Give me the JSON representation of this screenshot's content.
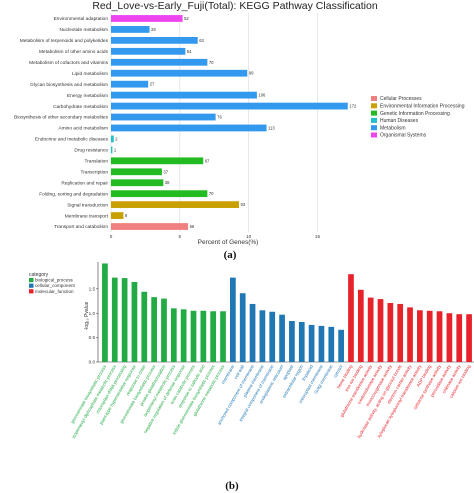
{
  "chart_data": [
    {
      "type": "bar",
      "orientation": "horizontal",
      "title": "Red_Love-vs-Early_Fuji(Total): KEGG Pathway Classification",
      "xlabel": "Percent of Genes(%)",
      "ylabel": "",
      "xlim": [
        0,
        17
      ],
      "xticks": [
        "0",
        "5",
        "10",
        "15"
      ],
      "grid": true,
      "legend_position": "right",
      "groups": [
        {
          "name": "Cellular Processes",
          "color": "#f08080"
        },
        {
          "name": "Environmental Information Processing",
          "color": "#c8a000"
        },
        {
          "name": "Genetic Information Processing",
          "color": "#22bb22"
        },
        {
          "name": "Human Diseases",
          "color": "#22c0c8"
        },
        {
          "name": "Metabolism",
          "color": "#3399ee"
        },
        {
          "name": "Organismal Systems",
          "color": "#ee44ee"
        }
      ],
      "bars": [
        {
          "category": "Environmental adaptation",
          "percent": 5.2,
          "count": "52",
          "group": "Organismal Systems"
        },
        {
          "category": "Nucleotide metabolism",
          "percent": 2.8,
          "count": "28",
          "group": "Metabolism"
        },
        {
          "category": "Metabolism of terpenoids and polyketides",
          "percent": 6.3,
          "count": "63",
          "group": "Metabolism"
        },
        {
          "category": "Metabolism of other amino acids",
          "percent": 5.4,
          "count": "54",
          "group": "Metabolism"
        },
        {
          "category": "Metabolism of cofactors and vitamins",
          "percent": 7.0,
          "count": "70",
          "group": "Metabolism"
        },
        {
          "category": "Lipid metabolism",
          "percent": 9.9,
          "count": "99",
          "group": "Metabolism"
        },
        {
          "category": "Glycan biosynthesis and metabolism",
          "percent": 2.7,
          "count": "27",
          "group": "Metabolism"
        },
        {
          "category": "Energy metabolism",
          "percent": 10.6,
          "count": "106",
          "group": "Metabolism"
        },
        {
          "category": "Carbohydrate metabolism",
          "percent": 17.2,
          "count": "172",
          "group": "Metabolism"
        },
        {
          "category": "Biosynthesis of other secondary metabolites",
          "percent": 7.6,
          "count": "76",
          "group": "Metabolism"
        },
        {
          "category": "Amino acid metabolism",
          "percent": 11.3,
          "count": "113",
          "group": "Metabolism"
        },
        {
          "category": "Endocrine and metabolic diseases",
          "percent": 0.2,
          "count": "2",
          "group": "Human Diseases"
        },
        {
          "category": "Drug resistance",
          "percent": 0.1,
          "count": "1",
          "group": "Human Diseases"
        },
        {
          "category": "Translation",
          "percent": 6.7,
          "count": "67",
          "group": "Genetic Information Processing"
        },
        {
          "category": "Transcription",
          "percent": 3.7,
          "count": "37",
          "group": "Genetic Information Processing"
        },
        {
          "category": "Replication and repair",
          "percent": 3.8,
          "count": "38",
          "group": "Genetic Information Processing"
        },
        {
          "category": "Folding, sorting and degradation",
          "percent": 7.0,
          "count": "70",
          "group": "Genetic Information Processing"
        },
        {
          "category": "Signal transduction",
          "percent": 9.3,
          "count": "93",
          "group": "Environmental Information Processing"
        },
        {
          "category": "Membrane transport",
          "percent": 0.9,
          "count": "9",
          "group": "Environmental Information Processing"
        },
        {
          "category": "Transport and catabolism",
          "percent": 5.6,
          "count": "56",
          "group": "Cellular Processes"
        }
      ],
      "caption": "(a)"
    },
    {
      "type": "bar",
      "orientation": "vertical",
      "title": "",
      "xlabel": "",
      "ylabel": "-log₁₀ Pvalue",
      "ylim": [
        0,
        2.05
      ],
      "yticks": [
        "0.0",
        "0.5",
        "1.0",
        "1.5"
      ],
      "grid": false,
      "legend_title": "category",
      "legend_position": "top-left",
      "series": [
        {
          "name": "biological_process",
          "color": "#22aa44"
        },
        {
          "name": "cellular_component",
          "color": "#1f77b4"
        },
        {
          "name": "molecular_function",
          "color": "#e8222a"
        }
      ],
      "bars": [
        {
          "term": "glucosinolate biosynthetic process",
          "value": 2.02,
          "category": "biological_process"
        },
        {
          "term": "isopentenyl diphosphate metabolic process",
          "value": 1.73,
          "category": "biological_process"
        },
        {
          "term": "chloroplast rRNA processing",
          "value": 1.72,
          "category": "biological_process"
        },
        {
          "term": "plant-type hypersensitive response",
          "value": 1.64,
          "category": "biological_process"
        },
        {
          "term": "response to chitin",
          "value": 1.44,
          "category": "biological_process"
        },
        {
          "term": "glucosinolate biosynthetic process",
          "value": 1.33,
          "category": "biological_process"
        },
        {
          "term": "protein glutathionylation",
          "value": 1.3,
          "category": "biological_process"
        },
        {
          "term": "isopentenyl metabolic process",
          "value": 1.1,
          "category": "biological_process"
        },
        {
          "term": "negative regulation of defense response",
          "value": 1.08,
          "category": "biological_process"
        },
        {
          "term": "toxin catabolic process",
          "value": 1.05,
          "category": "biological_process"
        },
        {
          "term": "response to salicylic acid",
          "value": 1.05,
          "category": "biological_process"
        },
        {
          "term": "indole glucosinolate biosynthetic process",
          "value": 1.04,
          "category": "biological_process"
        },
        {
          "term": "glutathione metabolic process",
          "value": 1.04,
          "category": "biological_process"
        },
        {
          "term": "membrane",
          "value": 1.73,
          "category": "cellular_component"
        },
        {
          "term": "cell wall",
          "value": 1.41,
          "category": "cellular_component"
        },
        {
          "term": "anchored component of membrane",
          "value": 1.19,
          "category": "cellular_component"
        },
        {
          "term": "plasma membrane",
          "value": 1.06,
          "category": "cellular_component"
        },
        {
          "term": "integral component of membrane",
          "value": 1.03,
          "category": "cellular_component"
        },
        {
          "term": "endoplasmic reticulum",
          "value": 0.97,
          "category": "cellular_component"
        },
        {
          "term": "apoplast",
          "value": 0.84,
          "category": "cellular_component"
        },
        {
          "term": "extracellular region",
          "value": 0.82,
          "category": "cellular_component"
        },
        {
          "term": "thylakoid",
          "value": 0.76,
          "category": "cellular_component"
        },
        {
          "term": "chloroplast membrane",
          "value": 0.74,
          "category": "cellular_component"
        },
        {
          "term": "Golgi membrane",
          "value": 0.72,
          "category": "cellular_component"
        },
        {
          "term": "cytosol",
          "value": 0.66,
          "category": "cellular_component"
        },
        {
          "term": "heme binding",
          "value": 1.8,
          "category": "molecular_function"
        },
        {
          "term": "iron ion binding",
          "value": 1.48,
          "category": "molecular_function"
        },
        {
          "term": "glutathione transferase activity",
          "value": 1.32,
          "category": "molecular_function"
        },
        {
          "term": "oxidoreductase activity",
          "value": 1.29,
          "category": "molecular_function"
        },
        {
          "term": "monooxygenase activity",
          "value": 1.21,
          "category": "molecular_function"
        },
        {
          "term": "hydrolase activity, acting on glycosyl bonds",
          "value": 1.19,
          "category": "molecular_function"
        },
        {
          "term": "electron carrier activity",
          "value": 1.12,
          "category": "molecular_function"
        },
        {
          "term": "xyloglucan:xyloglucosyl transferase activity",
          "value": 1.06,
          "category": "molecular_function"
        },
        {
          "term": "ADP binding",
          "value": 1.05,
          "category": "molecular_function"
        },
        {
          "term": "cellulose synthase activity",
          "value": 1.04,
          "category": "molecular_function"
        },
        {
          "term": "peroxidase activity",
          "value": 1.0,
          "category": "molecular_function"
        },
        {
          "term": "chitinase activity",
          "value": 0.98,
          "category": "molecular_function"
        },
        {
          "term": "calcium ion binding",
          "value": 0.98,
          "category": "molecular_function"
        }
      ],
      "caption": "(b)"
    }
  ]
}
